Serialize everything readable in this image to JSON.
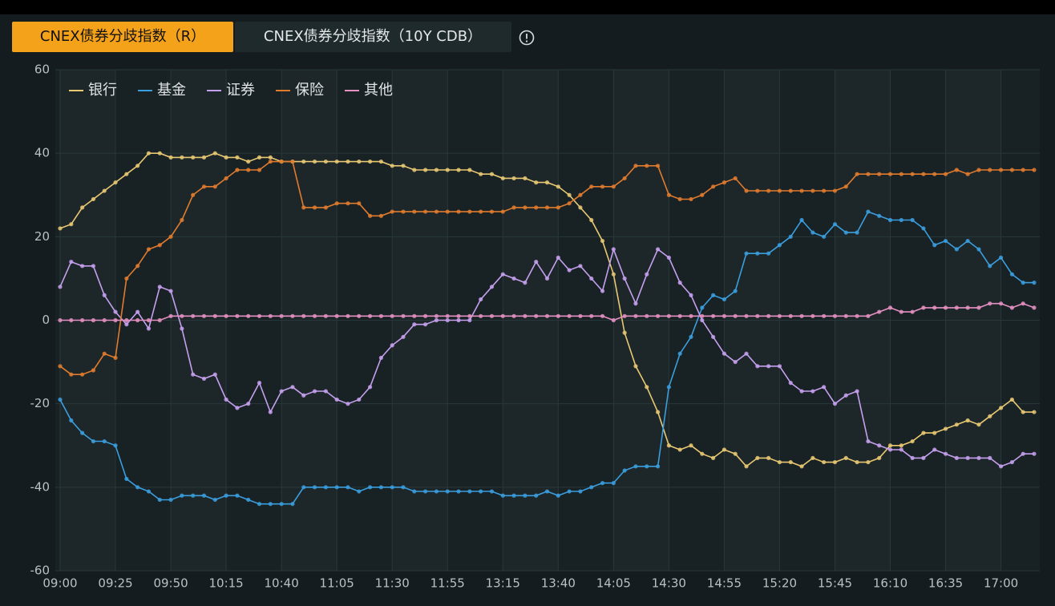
{
  "tabs": [
    "CNEX债券分歧指数（R）",
    "CNEX债券分歧指数（10Y CDB）"
  ],
  "chart_data": {
    "type": "line",
    "categories": [
      "09:00",
      null,
      null,
      null,
      null,
      "09:25",
      null,
      null,
      null,
      null,
      "09:50",
      null,
      null,
      null,
      null,
      "10:15",
      null,
      null,
      null,
      null,
      "10:40",
      null,
      null,
      null,
      null,
      "11:05",
      null,
      null,
      null,
      null,
      "11:30",
      null,
      null,
      null,
      null,
      "11:55",
      null,
      null,
      null,
      null,
      "13:15",
      null,
      null,
      null,
      null,
      "13:40",
      null,
      null,
      null,
      null,
      "14:05",
      null,
      null,
      null,
      null,
      "14:30",
      null,
      null,
      null,
      null,
      "14:55",
      null,
      null,
      null,
      null,
      "15:20",
      null,
      null,
      null,
      null,
      "15:45",
      null,
      null,
      null,
      null,
      "16:10",
      null,
      null,
      null,
      null,
      "16:35",
      null,
      null,
      null,
      null,
      "17:00",
      null,
      null,
      null
    ],
    "series": [
      {
        "name": "银行",
        "color": "#e8c872",
        "values": [
          22,
          23,
          27,
          29,
          31,
          33,
          35,
          37,
          40,
          40,
          39,
          39,
          39,
          39,
          40,
          39,
          39,
          38,
          39,
          39,
          38,
          38,
          38,
          38,
          38,
          38,
          38,
          38,
          38,
          38,
          37,
          37,
          36,
          36,
          36,
          36,
          36,
          36,
          35,
          35,
          34,
          34,
          34,
          33,
          33,
          32,
          30,
          27,
          24,
          19,
          11,
          -3,
          -11,
          -16,
          -22,
          -30,
          -31,
          -30,
          -32,
          -33,
          -31,
          -32,
          -35,
          -33,
          -33,
          -34,
          -34,
          -35,
          -33,
          -34,
          -34,
          -33,
          -34,
          -34,
          -33,
          -30,
          -30,
          -29,
          -27,
          -27,
          -26,
          -25,
          -24,
          -25,
          -23,
          -21,
          -19,
          -22,
          -22
        ]
      },
      {
        "name": "基金",
        "color": "#3b9ede",
        "values": [
          -19,
          -24,
          -27,
          -29,
          -29,
          -30,
          -38,
          -40,
          -41,
          -43,
          -43,
          -42,
          -42,
          -42,
          -43,
          -42,
          -42,
          -43,
          -44,
          -44,
          -44,
          -44,
          -40,
          -40,
          -40,
          -40,
          -40,
          -41,
          -40,
          -40,
          -40,
          -40,
          -41,
          -41,
          -41,
          -41,
          -41,
          -41,
          -41,
          -41,
          -42,
          -42,
          -42,
          -42,
          -41,
          -42,
          -41,
          -41,
          -40,
          -39,
          -39,
          -36,
          -35,
          -35,
          -35,
          -16,
          -8,
          -4,
          3,
          6,
          5,
          7,
          16,
          16,
          16,
          18,
          20,
          24,
          21,
          20,
          23,
          21,
          21,
          26,
          25,
          24,
          24,
          24,
          22,
          18,
          19,
          17,
          19,
          17,
          13,
          15,
          11,
          9,
          9
        ]
      },
      {
        "name": "证券",
        "color": "#c5a0ee",
        "values": [
          8,
          14,
          13,
          13,
          6,
          2,
          -1,
          2,
          -2,
          8,
          7,
          -2,
          -13,
          -14,
          -13,
          -19,
          -21,
          -20,
          -15,
          -22,
          -17,
          -16,
          -18,
          -17,
          -17,
          -19,
          -20,
          -19,
          -16,
          -9,
          -6,
          -4,
          -1,
          -1,
          0,
          0,
          0,
          0,
          5,
          8,
          11,
          10,
          9,
          14,
          10,
          15,
          12,
          13,
          10,
          7,
          17,
          10,
          4,
          11,
          17,
          15,
          9,
          6,
          0,
          -4,
          -8,
          -10,
          -8,
          -11,
          -11,
          -11,
          -15,
          -17,
          -17,
          -16,
          -20,
          -18,
          -17,
          -29,
          -30,
          -31,
          -31,
          -33,
          -33,
          -31,
          -32,
          -33,
          -33,
          -33,
          -33,
          -35,
          -34,
          -32,
          -32
        ]
      },
      {
        "name": "保险",
        "color": "#e07b2e",
        "values": [
          -11,
          -13,
          -13,
          -12,
          -8,
          -9,
          10,
          13,
          17,
          18,
          20,
          24,
          30,
          32,
          32,
          34,
          36,
          36,
          36,
          38,
          38,
          38,
          27,
          27,
          27,
          28,
          28,
          28,
          25,
          25,
          26,
          26,
          26,
          26,
          26,
          26,
          26,
          26,
          26,
          26,
          26,
          27,
          27,
          27,
          27,
          27,
          28,
          30,
          32,
          32,
          32,
          34,
          37,
          37,
          37,
          30,
          29,
          29,
          30,
          32,
          33,
          34,
          31,
          31,
          31,
          31,
          31,
          31,
          31,
          31,
          31,
          32,
          35,
          35,
          35,
          35,
          35,
          35,
          35,
          35,
          35,
          36,
          35,
          36,
          36,
          36,
          36,
          36,
          36
        ]
      },
      {
        "name": "其他",
        "color": "#e590c2",
        "values": [
          0,
          0,
          0,
          0,
          0,
          0,
          0,
          0,
          0,
          0,
          1,
          1,
          1,
          1,
          1,
          1,
          1,
          1,
          1,
          1,
          1,
          1,
          1,
          1,
          1,
          1,
          1,
          1,
          1,
          1,
          1,
          1,
          1,
          1,
          1,
          1,
          1,
          1,
          1,
          1,
          1,
          1,
          1,
          1,
          1,
          1,
          1,
          1,
          1,
          1,
          0,
          1,
          1,
          1,
          1,
          1,
          1,
          1,
          1,
          1,
          1,
          1,
          1,
          1,
          1,
          1,
          1,
          1,
          1,
          1,
          1,
          1,
          1,
          1,
          2,
          3,
          2,
          2,
          3,
          3,
          3,
          3,
          3,
          3,
          4,
          4,
          3,
          4,
          3
        ]
      }
    ],
    "ylim": [
      -60,
      60
    ],
    "yticks": [
      -60,
      -40,
      -20,
      0,
      20,
      40,
      60
    ],
    "grid": true,
    "legend": "top-left"
  }
}
